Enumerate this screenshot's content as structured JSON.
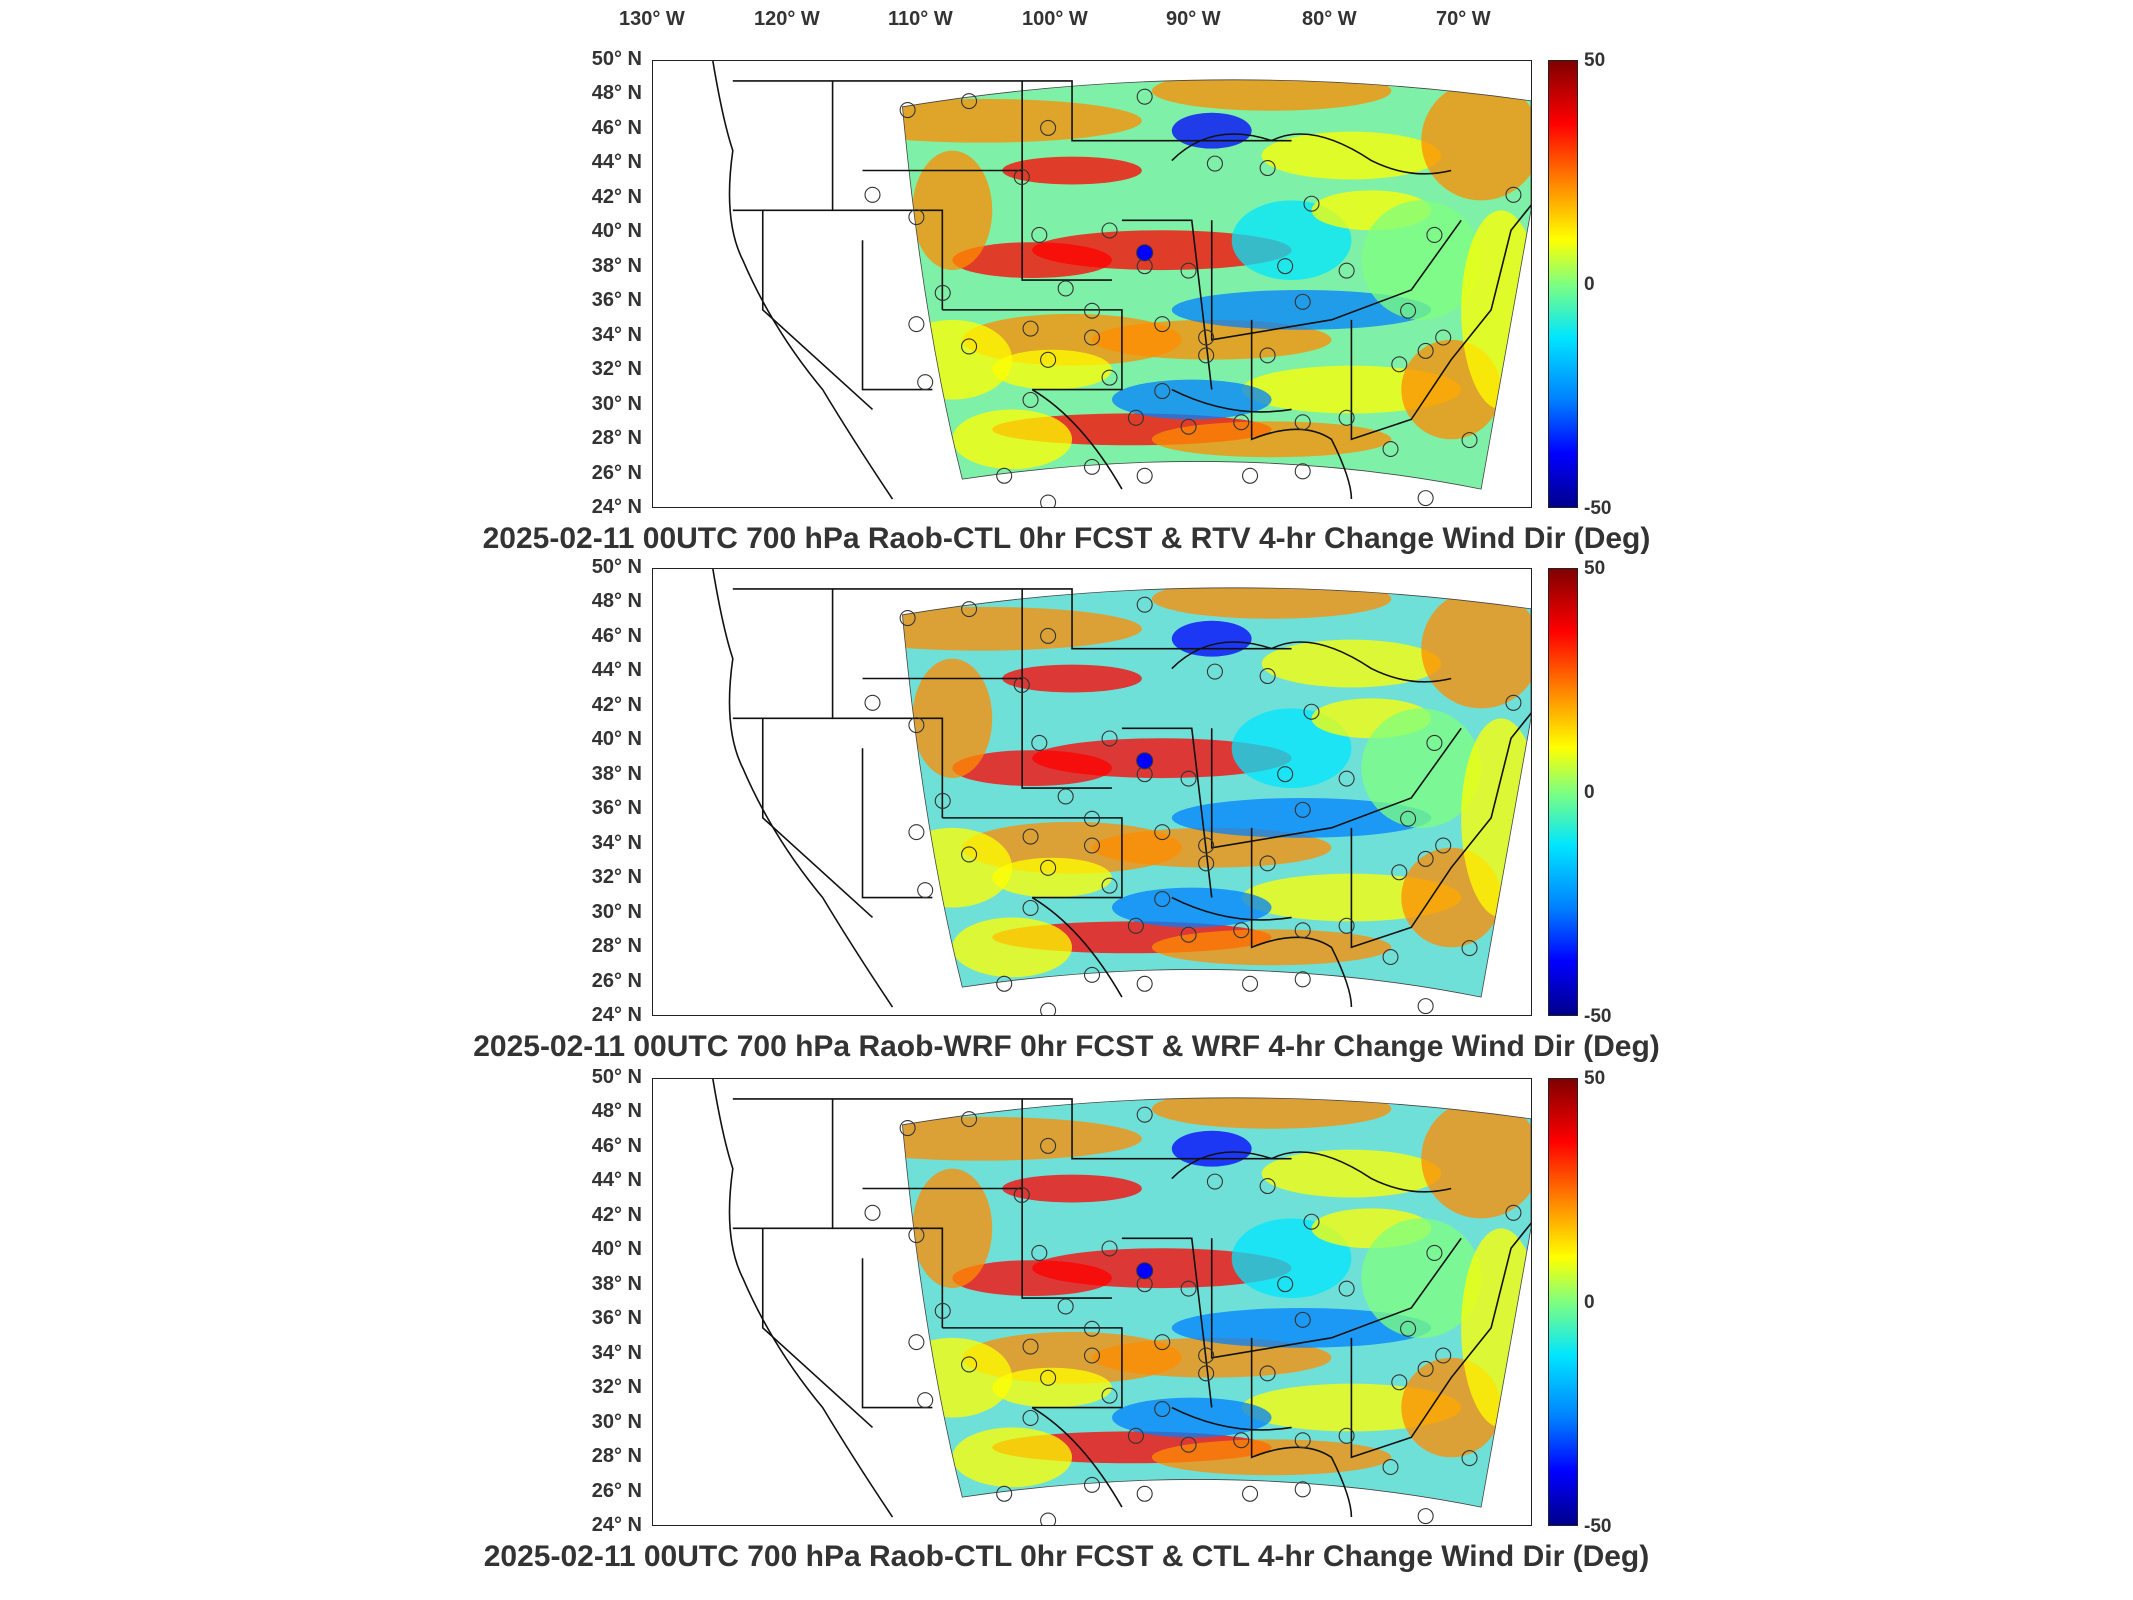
{
  "longitude_labels": [
    "130° W",
    "120° W",
    "110° W",
    "100° W",
    "90° W",
    "80° W",
    "70° W"
  ],
  "latitude_labels": [
    "50° N",
    "48° N",
    "46° N",
    "44° N",
    "42° N",
    "40° N",
    "38° N",
    "36° N",
    "34° N",
    "32° N",
    "30° N",
    "28° N",
    "26° N",
    "24° N"
  ],
  "colorbar": {
    "max_label": "50",
    "mid_label": "0",
    "min_label": "-50",
    "colors": [
      "#800000",
      "#ff0000",
      "#ff8c00",
      "#ffff00",
      "#7fff7f",
      "#00e5ff",
      "#0080ff",
      "#0000ff",
      "#00008b"
    ]
  },
  "panels": [
    {
      "title": "2025-02-11 00UTC 700 hPa Raob-CTL 0hr FCST & RTV 4-hr Change Wind Dir (Deg)"
    },
    {
      "title": "2025-02-11 00UTC 700 hPa Raob-WRF 0hr FCST & WRF 4-hr Change Wind Dir (Deg)"
    },
    {
      "title": "2025-02-11 00UTC 700 hPa Raob-CTL 0hr FCST & CTL 4-hr Change Wind Dir (Deg)"
    }
  ]
}
